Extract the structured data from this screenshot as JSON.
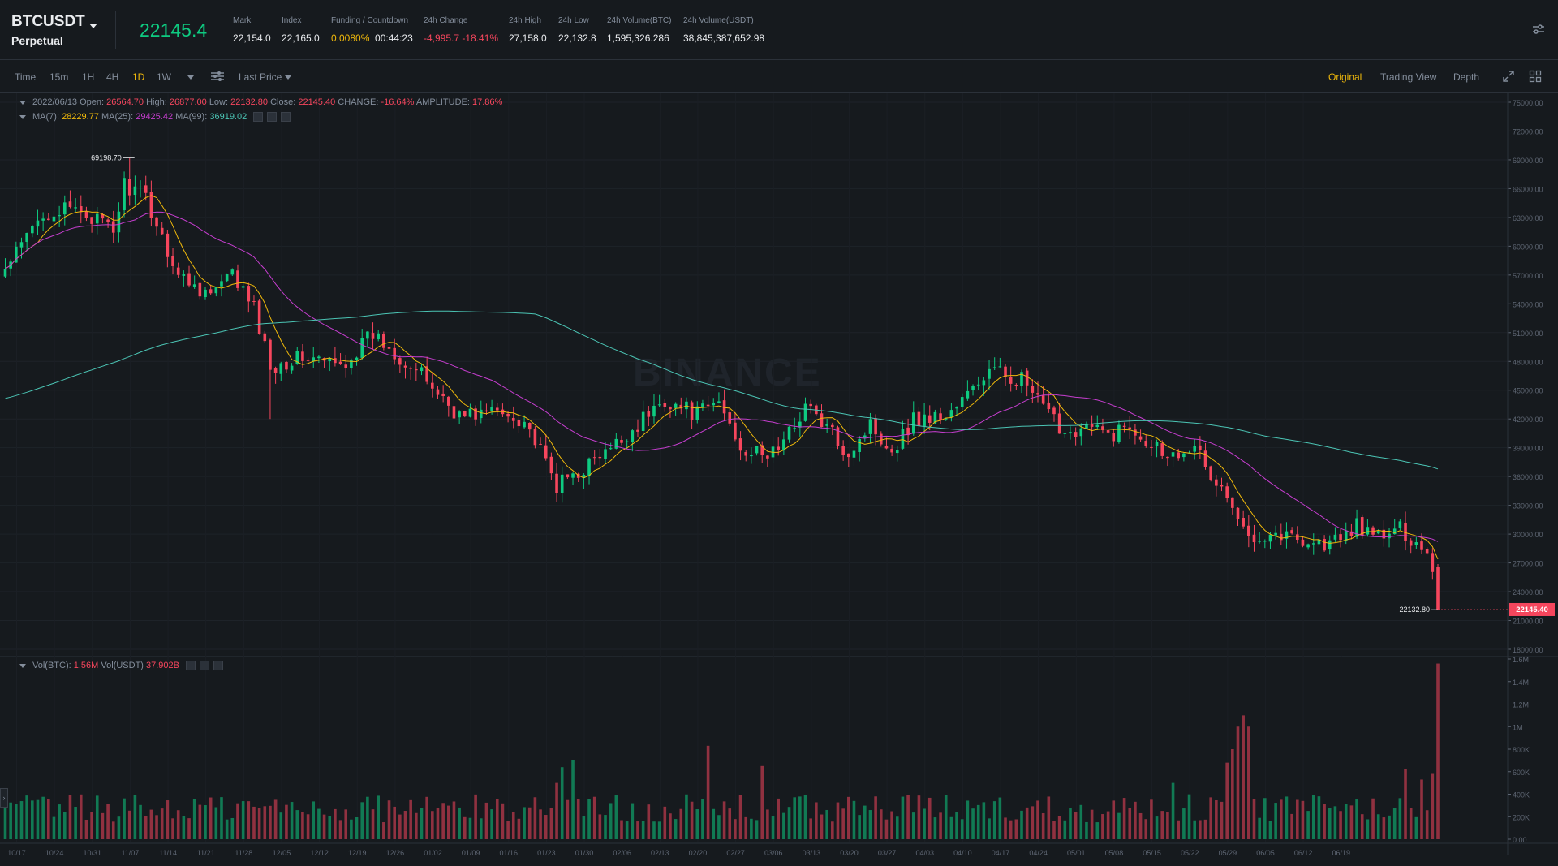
{
  "header": {
    "symbol": "BTCUSDT",
    "contract": "Perpetual",
    "last_price": "22145.4",
    "stats": [
      {
        "label": "Mark",
        "value": "22,154.0"
      },
      {
        "label": "Index",
        "value": "22,165.0"
      },
      {
        "label": "Funding / Countdown",
        "value": "0.0080%",
        "value2": "00:44:23"
      },
      {
        "label": "24h Change",
        "value": "-4,995.7 -18.41%"
      },
      {
        "label": "24h High",
        "value": "27,158.0"
      },
      {
        "label": "24h Low",
        "value": "22,132.8"
      },
      {
        "label": "24h Volume(BTC)",
        "value": "1,595,326.286"
      },
      {
        "label": "24h Volume(USDT)",
        "value": "38,845,387,652.98"
      }
    ]
  },
  "toolbar": {
    "intervals": [
      "Time",
      "15m",
      "1H",
      "4H",
      "1D",
      "1W"
    ],
    "active_interval": "1D",
    "price_type": "Last Price",
    "views": [
      "Original",
      "Trading View",
      "Depth"
    ],
    "active_view": "Original"
  },
  "legend": {
    "date": "2022/06/13",
    "open_label": "Open:",
    "open": "26564.70",
    "high_label": "High:",
    "high": "26877.00",
    "low_label": "Low:",
    "low": "22132.80",
    "close_label": "Close:",
    "close": "22145.40",
    "change_label": "CHANGE:",
    "change": "-16.64%",
    "amp_label": "AMPLITUDE:",
    "amp": "17.86%",
    "ma7_label": "MA(7):",
    "ma7": "28229.77",
    "ma25_label": "MA(25):",
    "ma25": "29425.42",
    "ma99_label": "MA(99):",
    "ma99": "36919.02",
    "vol_btc_label": "Vol(BTC):",
    "vol_btc": "1.56M",
    "vol_usdt_label": "Vol(USDT)",
    "vol_usdt": "37.902B"
  },
  "watermark": "BINANCE",
  "colors": {
    "up": "#0ecb81",
    "down": "#f6465d",
    "ma7": "#f0b90b",
    "ma25": "#c63ecf",
    "ma99": "#4bc4b4",
    "bg": "#161a1e"
  },
  "chart_data": {
    "type": "candlestick",
    "price_axis_ticks": [
      "75000.00",
      "72000.00",
      "69000.00",
      "66000.00",
      "63000.00",
      "60000.00",
      "57000.00",
      "54000.00",
      "51000.00",
      "48000.00",
      "45000.00",
      "42000.00",
      "39000.00",
      "36000.00",
      "33000.00",
      "30000.00",
      "27000.00",
      "24000.00",
      "21000.00",
      "18000.00"
    ],
    "ylim": [
      18000,
      75000
    ],
    "volume_axis_ticks": [
      "1.6M",
      "1.4M",
      "1.2M",
      "1M",
      "800K",
      "600K",
      "400K",
      "200K",
      "0.00"
    ],
    "volume_ylim": [
      0,
      1600000
    ],
    "x_tick_labels": [
      "10/17",
      "10/24",
      "10/31",
      "11/07",
      "11/14",
      "11/21",
      "11/28",
      "12/05",
      "12/12",
      "12/19",
      "12/26",
      "01/02",
      "01/09",
      "01/16",
      "01/23",
      "01/30",
      "02/06",
      "02/13",
      "02/20",
      "02/27",
      "03/06",
      "03/13",
      "03/20",
      "03/27",
      "04/03",
      "04/10",
      "04/17",
      "04/24",
      "05/01",
      "05/08",
      "05/15",
      "05/22",
      "05/29",
      "06/05",
      "06/12",
      "06/19"
    ],
    "max_marker": "69198.70",
    "min_marker": "22132.80",
    "current_price_tag": "22145.40",
    "close_anchors": [
      [
        0,
        57500
      ],
      [
        7,
        63500
      ],
      [
        14,
        63800
      ],
      [
        20,
        61500
      ],
      [
        22,
        66500
      ],
      [
        26,
        65000
      ],
      [
        32,
        57000
      ],
      [
        38,
        55000
      ],
      [
        42,
        57000
      ],
      [
        46,
        53500
      ],
      [
        49,
        47500
      ],
      [
        55,
        48500
      ],
      [
        62,
        47500
      ],
      [
        68,
        50800
      ],
      [
        72,
        49000
      ],
      [
        78,
        46000
      ],
      [
        84,
        42300
      ],
      [
        90,
        42800
      ],
      [
        96,
        42000
      ],
      [
        102,
        35000
      ],
      [
        108,
        37300
      ],
      [
        112,
        38700
      ],
      [
        118,
        42000
      ],
      [
        122,
        44000
      ],
      [
        128,
        42500
      ],
      [
        132,
        43800
      ],
      [
        136,
        39200
      ],
      [
        140,
        38000
      ],
      [
        144,
        39500
      ],
      [
        148,
        43500
      ],
      [
        152,
        41000
      ],
      [
        156,
        38500
      ],
      [
        160,
        41500
      ],
      [
        164,
        38800
      ],
      [
        168,
        42000
      ],
      [
        174,
        42300
      ],
      [
        178,
        44500
      ],
      [
        182,
        47000
      ],
      [
        188,
        46200
      ],
      [
        192,
        43000
      ],
      [
        196,
        40700
      ],
      [
        200,
        41200
      ],
      [
        204,
        40300
      ],
      [
        208,
        41300
      ],
      [
        212,
        39600
      ],
      [
        216,
        38200
      ],
      [
        220,
        39800
      ],
      [
        222,
        36500
      ],
      [
        226,
        34000
      ],
      [
        228,
        31000
      ],
      [
        230,
        30000
      ],
      [
        234,
        30200
      ],
      [
        240,
        29500
      ],
      [
        244,
        28900
      ],
      [
        248,
        29700
      ],
      [
        250,
        31300
      ],
      [
        252,
        29900
      ],
      [
        256,
        29900
      ],
      [
        258,
        30500
      ],
      [
        261,
        29100
      ],
      [
        263,
        28300
      ],
      [
        264,
        26600
      ],
      [
        265,
        22145
      ]
    ],
    "candle_count": 266,
    "ma_periods": [
      7,
      25,
      99
    ]
  }
}
